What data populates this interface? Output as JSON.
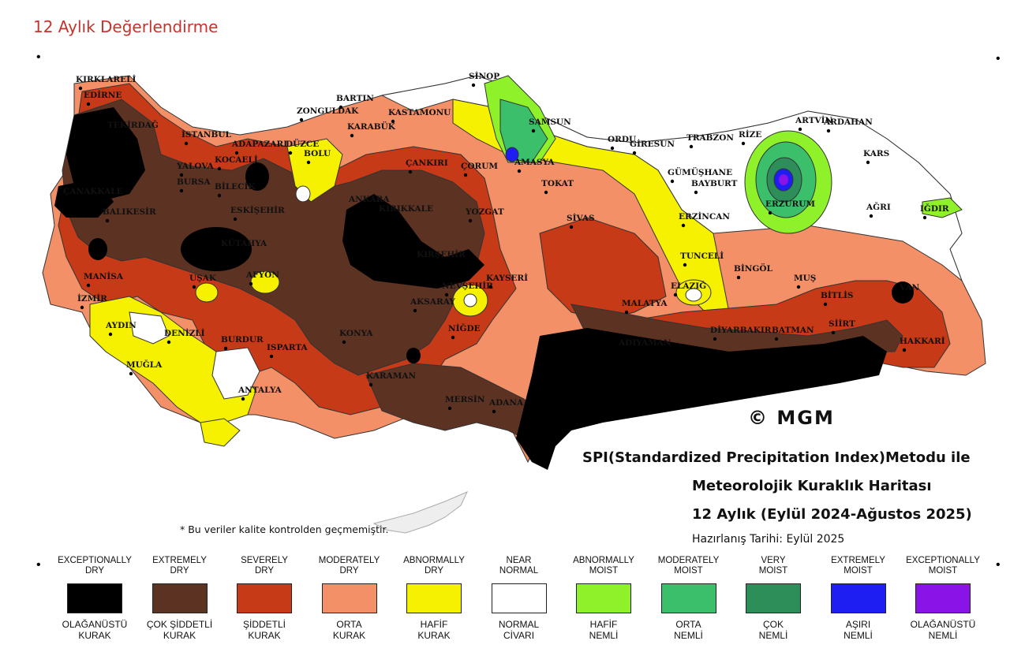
{
  "header": {
    "title": "12 Aylık Değerlendirme"
  },
  "map": {
    "logo": "© MGM",
    "title_line1": "SPI(Standardized Precipitation Index)Metodu ile",
    "title_line2": "Meteorolojik Kuraklık Haritası",
    "title_line3": "12 Aylık (Eylül 2024-Ağustos 2025)",
    "prepared": "Hazırlanış Tarihi: Eylül 2025",
    "note": "* Bu veriler kalite kontrolden geçmemiştir.",
    "colors": {
      "exceptionally_dry": "#000000",
      "extremely_dry": "#5c3222",
      "severely_dry": "#c63a17",
      "moderately_dry": "#f39068",
      "abnormally_dry": "#f5f100",
      "near_normal": "#ffffff",
      "abnormally_moist": "#8ef12a",
      "moderately_moist": "#3bbf6b",
      "very_moist": "#2e8e5a",
      "extremely_moist": "#1e1ef2",
      "exceptionally_moist": "#8a14e8"
    },
    "cities": [
      "KIRKLARELİ",
      "EDİRNE",
      "TEKİRDAĞ",
      "İSTANBUL",
      "KOCAELİ",
      "YALOVA",
      "ADAPAZARI",
      "DÜZCE",
      "BOLU",
      "ZONGULDAK",
      "BARTIN",
      "KARABÜK",
      "KASTAMONU",
      "SİNOP",
      "SAMSUN",
      "AMASYA",
      "ÇORUM",
      "ÇANKIRI",
      "BURSA",
      "BİLECİK",
      "ÇANAKKALE",
      "BALIKESİR",
      "ESKİŞEHİR",
      "ANKARA",
      "KIRIKKALE",
      "YOZGAT",
      "TOKAT",
      "ORDU",
      "GİRESUN",
      "TRABZON",
      "RİZE",
      "ARTVİN",
      "ARDAHAN",
      "KARS",
      "GÜMÜŞHANE",
      "BAYBURT",
      "ERZURUM",
      "ERZİNCAN",
      "AĞRI",
      "IĞDIR",
      "SİVAS",
      "KIRŞEHİR",
      "NEVŞEHİR",
      "KAYSERİ",
      "AKSARAY",
      "NİĞDE",
      "KONYA",
      "KARAMAN",
      "MERSİN",
      "ADANA",
      "MANİSA",
      "İZMİR",
      "UŞAK",
      "AFYON",
      "KÜTAHYA",
      "AYDIN",
      "DENİZLİ",
      "BURDUR",
      "ISPARTA",
      "MUĞLA",
      "ANTALYA",
      "TUNCELİ",
      "ELAZIĞ",
      "BİNGÖL",
      "MUŞ",
      "BİTLİS",
      "MALATYA",
      "ADIYAMAN",
      "DİYARBAKIR",
      "BATMAN",
      "SİİRT",
      "HAKKARİ",
      "VAN"
    ]
  },
  "legend": [
    {
      "en": "EXCEPTIONALLY\nDRY",
      "tr": "OLAĞANÜSTÜ\nKURAK",
      "color": "#000000"
    },
    {
      "en": "EXTREMELY\nDRY",
      "tr": "ÇOK ŞİDDETLİ\nKURAK",
      "color": "#5c3222"
    },
    {
      "en": "SEVERELY\nDRY",
      "tr": "ŞİDDETLİ\nKURAK",
      "color": "#c63a17"
    },
    {
      "en": "MODERATELY\nDRY",
      "tr": "ORTA\nKURAK",
      "color": "#f39068"
    },
    {
      "en": "ABNORMALLY\nDRY",
      "tr": "HAFİF\nKURAK",
      "color": "#f5f100"
    },
    {
      "en": "NEAR\nNORMAL",
      "tr": "NORMAL\nCİVARI",
      "color": "#ffffff"
    },
    {
      "en": "ABNORMALLY\nMOIST",
      "tr": "HAFİF\nNEMLİ",
      "color": "#8ef12a"
    },
    {
      "en": "MODERATELY\nMOIST",
      "tr": "ORTA\nNEMLİ",
      "color": "#3bbf6b"
    },
    {
      "en": "VERY\nMOIST",
      "tr": "ÇOK\nNEMLİ",
      "color": "#2e8e5a"
    },
    {
      "en": "EXTREMELY\nMOIST",
      "tr": "AŞIRI\nNEMLİ",
      "color": "#1e1ef2"
    },
    {
      "en": "EXCEPTIONALLY\nMOIST",
      "tr": "OLAĞANÜSTÜ\nNEMLİ",
      "color": "#8a14e8"
    }
  ]
}
